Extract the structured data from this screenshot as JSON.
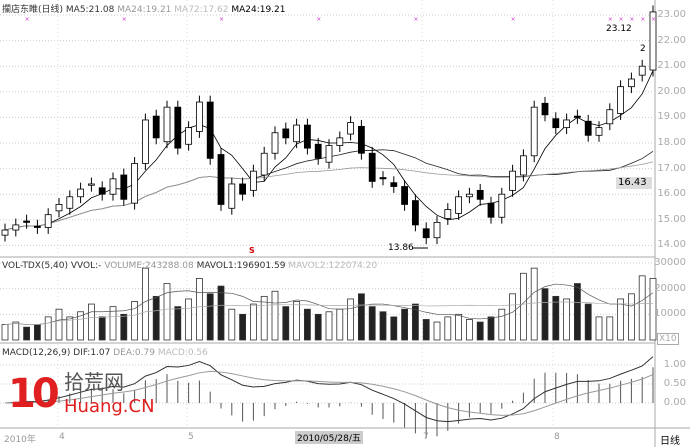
{
  "header": {
    "title": "攔店东睢(日线)",
    "ma5": "MA5:21.08",
    "ma24": "MA24:19.21",
    "ma72": "MA72:17.62",
    "ma24b": "MA24:19.21"
  },
  "volume_header": {
    "name": "VOL-TDX(5,40)",
    "vvol": "VVOL:-",
    "volume": "VOLUME:243288.08",
    "mavol1": "MAVOL1:196901.59",
    "mavol2": "MAVOL2:122074.20"
  },
  "macd_header": {
    "name": "MACD(12,26,9)",
    "dif": "DIF:1.07",
    "dea": "DEA:0.79",
    "macd": "MACD:0.56"
  },
  "annotations": {
    "low": "13.86",
    "high": "23.12",
    "current_price": "16.43",
    "marker": "2",
    "vol_unit": "X10",
    "period": "日线",
    "red_mark": "S"
  },
  "date_axis": {
    "year": "2010年",
    "m4": "4",
    "m5": "5",
    "cursor_date": "2010/05/28/五",
    "m7": "7",
    "m8": "8"
  },
  "watermark": {
    "digits": "10",
    "cn": "拾荒网",
    "en": "Huang.CN"
  },
  "colors": {
    "up": "#ffffff",
    "down": "#000000",
    "ma5": "#000000",
    "ma24": "#222222",
    "ma72": "#999999",
    "marker": "#cc33cc",
    "logo": "#e02020"
  },
  "chart_data": [
    {
      "type": "candlestick",
      "title": "攔店东睢(日线)",
      "ylim": [
        13.5,
        23.4
      ],
      "yticks": [
        14,
        15,
        16,
        17,
        18,
        19,
        20,
        21,
        22,
        23
      ],
      "closes": [
        14.6,
        14.8,
        14.9,
        14.7,
        15.2,
        15.6,
        15.9,
        16.2,
        16.4,
        16.0,
        16.6,
        15.8,
        17.2,
        18.9,
        18.2,
        19.4,
        17.8,
        18.6,
        19.6,
        17.4,
        15.6,
        16.4,
        16.0,
        16.9,
        17.6,
        18.4,
        18.2,
        18.7,
        17.8,
        17.4,
        17.9,
        18.2,
        18.8,
        17.6,
        16.5,
        16.6,
        16.3,
        15.6,
        14.8,
        14.3,
        14.9,
        15.4,
        15.9,
        16.0,
        15.8,
        15.1,
        16.0,
        16.9,
        17.5,
        19.4,
        19.1,
        18.6,
        18.9,
        19.0,
        18.3,
        18.6,
        19.3,
        20.2,
        20.5,
        21.0,
        23.12
      ],
      "ma_periods": [
        5,
        24,
        72
      ]
    },
    {
      "type": "bar",
      "title": "VOL-TDX(5,40)",
      "ylim": [
        0,
        30000
      ],
      "yticks": [
        10000,
        20000,
        30000
      ],
      "values": [
        6000,
        7000,
        5000,
        6000,
        9000,
        12000,
        9000,
        11000,
        14000,
        9000,
        13000,
        10000,
        15000,
        28000,
        17000,
        22000,
        13000,
        16000,
        24000,
        18000,
        21000,
        12000,
        10000,
        14000,
        17000,
        19000,
        13000,
        15000,
        12000,
        10000,
        11000,
        12000,
        16000,
        18000,
        13000,
        11000,
        9000,
        12000,
        14000,
        8000,
        7000,
        9000,
        10000,
        8000,
        7000,
        9000,
        12000,
        18000,
        26000,
        28000,
        20000,
        17000,
        16000,
        22000,
        14000,
        9000,
        9000,
        16000,
        18000,
        25000,
        24000
      ]
    },
    {
      "type": "line",
      "title": "MACD(12,26,9)",
      "ylim": [
        -0.58,
        1.45
      ],
      "yticks": [
        0.0,
        0.5,
        1.0
      ],
      "series": [
        {
          "name": "DIF"
        },
        {
          "name": "DEA"
        },
        {
          "name": "MACD"
        }
      ]
    }
  ]
}
